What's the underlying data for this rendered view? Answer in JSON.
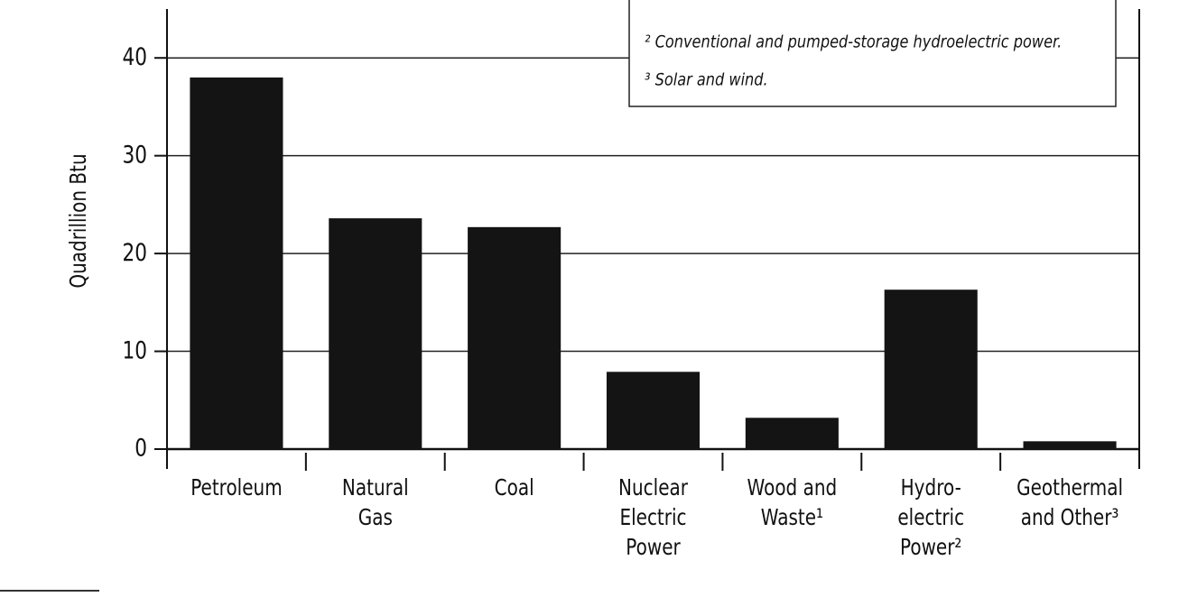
{
  "chart_data": {
    "type": "bar",
    "y_label": "Quadrillion Btu",
    "categories": [
      [
        "Petroleum"
      ],
      [
        "Natural",
        "Gas"
      ],
      [
        "Coal"
      ],
      [
        "Nuclear",
        "Electric",
        "Power"
      ],
      [
        "Wood and",
        "Waste¹"
      ],
      [
        "Hydro-",
        "electric",
        "Power²"
      ],
      [
        "Geothermal",
        "and Other³"
      ]
    ],
    "values": [
      38,
      23.6,
      22.7,
      7.9,
      3.2,
      16.3,
      0.8
    ],
    "color": "#141414",
    "ylim": [
      0,
      45
    ],
    "yticks": [
      0,
      10,
      20,
      30,
      40
    ],
    "grid": true,
    "annotations": [
      "² Conventional and pumped-storage hydroelectric power.",
      "³ Solar and wind."
    ]
  }
}
